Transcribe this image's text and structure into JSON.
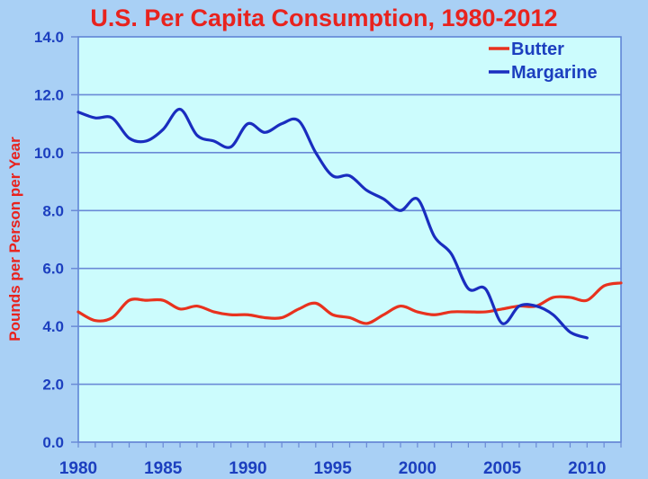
{
  "chart_data": {
    "type": "line",
    "title": "U.S. Per Capita Consumption, 1980-2012",
    "xlabel": "",
    "ylabel": "Pounds per Person per Year",
    "xlim": [
      1980,
      2012
    ],
    "ylim": [
      0,
      14
    ],
    "x_ticks": [
      1980,
      1985,
      1990,
      1995,
      2000,
      2005,
      2010
    ],
    "x_tick_labels": [
      "1980",
      "1985",
      "1990",
      "1995",
      "2000",
      "2005",
      "2010"
    ],
    "y_ticks": [
      0,
      2,
      4,
      6,
      8,
      10,
      12,
      14
    ],
    "y_tick_labels": [
      "0.0",
      "2.0",
      "4.0",
      "6.0",
      "8.0",
      "10.0",
      "12.0",
      "14.0"
    ],
    "grid": true,
    "legend": "top-right",
    "series": [
      {
        "name": "Butter",
        "color": "#e8321e",
        "x": [
          1980,
          1981,
          1982,
          1983,
          1984,
          1985,
          1986,
          1987,
          1988,
          1989,
          1990,
          1991,
          1992,
          1993,
          1994,
          1995,
          1996,
          1997,
          1998,
          1999,
          2000,
          2001,
          2002,
          2003,
          2004,
          2005,
          2006,
          2007,
          2008,
          2009,
          2010,
          2011,
          2012
        ],
        "values": [
          4.5,
          4.2,
          4.3,
          4.9,
          4.9,
          4.9,
          4.6,
          4.7,
          4.5,
          4.4,
          4.4,
          4.3,
          4.3,
          4.6,
          4.8,
          4.4,
          4.3,
          4.1,
          4.4,
          4.7,
          4.5,
          4.4,
          4.5,
          4.5,
          4.5,
          4.6,
          4.7,
          4.7,
          5.0,
          5.0,
          4.9,
          5.4,
          5.5
        ]
      },
      {
        "name": "Margarine",
        "color": "#1a2dbf",
        "x": [
          1980,
          1981,
          1982,
          1983,
          1984,
          1985,
          1986,
          1987,
          1988,
          1989,
          1990,
          1991,
          1992,
          1993,
          1994,
          1995,
          1996,
          1997,
          1998,
          1999,
          2000,
          2001,
          2002,
          2003,
          2004,
          2005,
          2006,
          2007,
          2008,
          2009,
          2010
        ],
        "values": [
          11.4,
          11.2,
          11.2,
          10.5,
          10.4,
          10.8,
          11.5,
          10.6,
          10.4,
          10.2,
          11.0,
          10.7,
          11.0,
          11.1,
          10.0,
          9.2,
          9.2,
          8.7,
          8.4,
          8.0,
          8.4,
          7.1,
          6.5,
          5.3,
          5.3,
          4.1,
          4.7,
          4.7,
          4.4,
          3.8,
          3.6
        ]
      }
    ]
  }
}
